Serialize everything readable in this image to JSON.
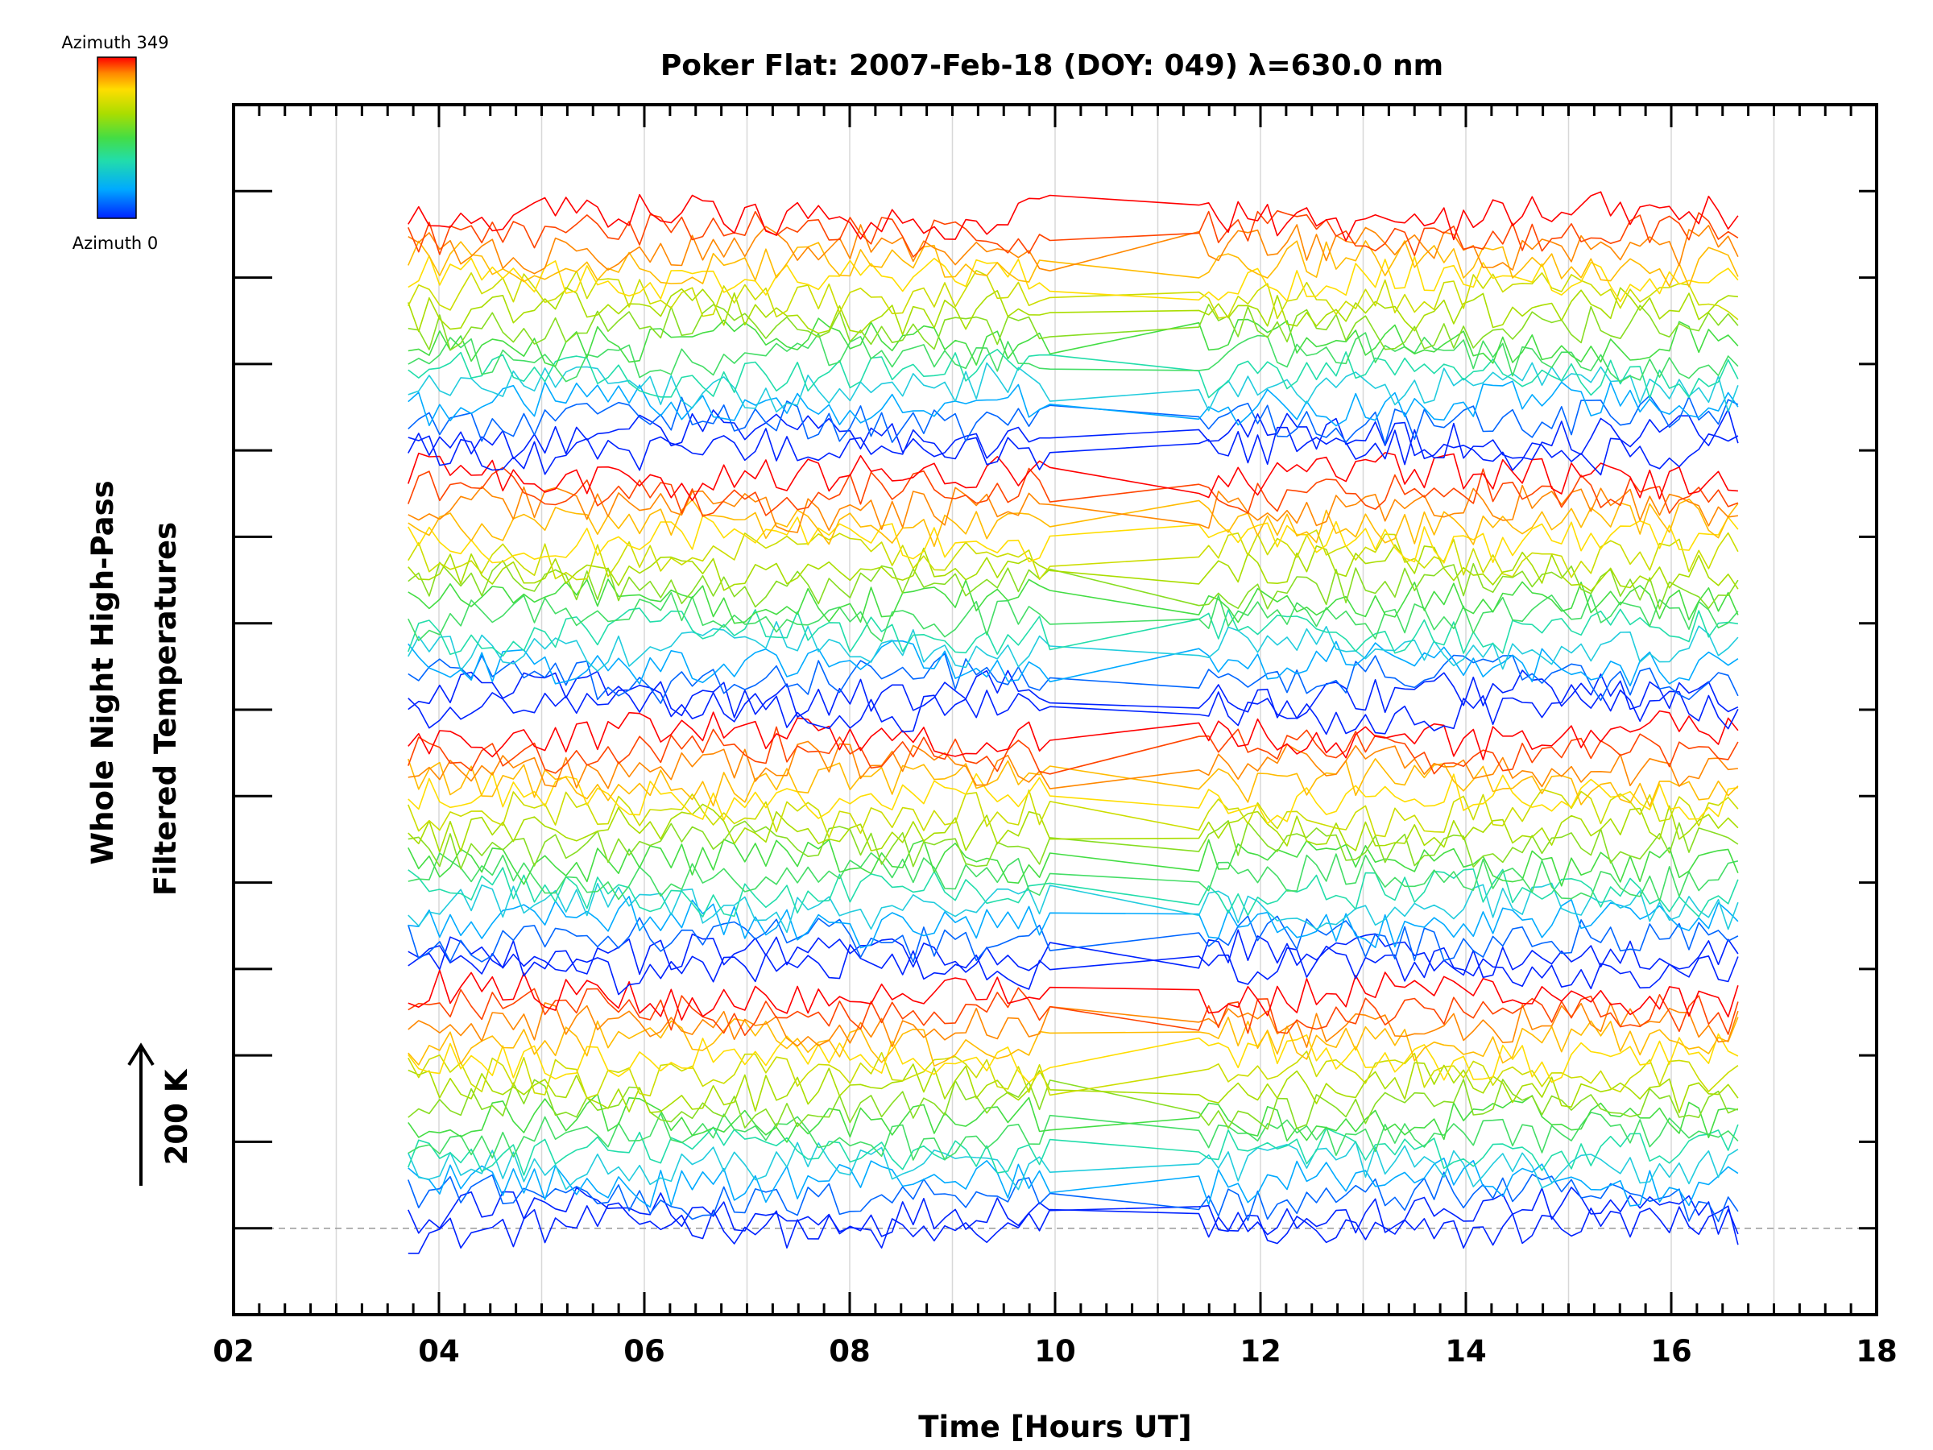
{
  "chart_data": {
    "type": "line",
    "title": "Poker Flat: 2007-Feb-18 (DOY: 049) λ=630.0 nm",
    "xlabel": "Time [Hours UT]",
    "ylabel_line1": "Whole Night High-Pass",
    "ylabel_line2": "Filtered Temperatures",
    "xlim": [
      2,
      18
    ],
    "x_major_ticks": [
      2,
      4,
      6,
      8,
      10,
      12,
      14,
      16,
      18
    ],
    "x_tick_labels": [
      "02",
      "04",
      "06",
      "08",
      "10",
      "12",
      "14",
      "16",
      "18"
    ],
    "x_minor_step": 0.25,
    "gridlines": [
      3,
      4,
      5,
      6,
      7,
      8,
      9,
      10,
      11,
      12,
      13,
      14,
      15,
      16,
      17
    ],
    "y_offset_range": [
      -1.0,
      13.0
    ],
    "y_tick_offsets": [
      -1,
      0,
      1,
      2,
      3,
      4,
      5,
      6,
      7,
      8,
      9,
      10,
      11,
      12
    ],
    "y_scale_units_per_200K": 1,
    "scale_bar_label": "200 K",
    "baseline_offset": 0,
    "grid": true,
    "colorbar": {
      "top_label": "Azimuth 349",
      "bottom_label": "Azimuth 0",
      "colors": [
        "#ff0000",
        "#ff8800",
        "#ffdd00",
        "#aadd00",
        "#44dd44",
        "#22ddaa",
        "#00aaff",
        "#0022ff"
      ],
      "placement": "top-left"
    },
    "data_start": 3.7,
    "data_end": 16.65,
    "data_gap": [
      9.95,
      11.4
    ],
    "samples_before_gap": 62,
    "samples_after_gap": 56,
    "series_count": 64,
    "traces_per_band": 16,
    "band_offsets": [
      0,
      3,
      6,
      9
    ],
    "band_spacing_per_trace": 0.18,
    "noise_amplitude": 0.22,
    "series_colors": [
      "#0022ff",
      "#0022ff",
      "#0066ff",
      "#00aaff",
      "#22ccdd",
      "#22ddaa",
      "#44dd66",
      "#44dd44",
      "#88dd22",
      "#aadd00",
      "#ccdd00",
      "#ffdd00",
      "#ffbb00",
      "#ff8800",
      "#ff4400",
      "#ff0000"
    ]
  }
}
